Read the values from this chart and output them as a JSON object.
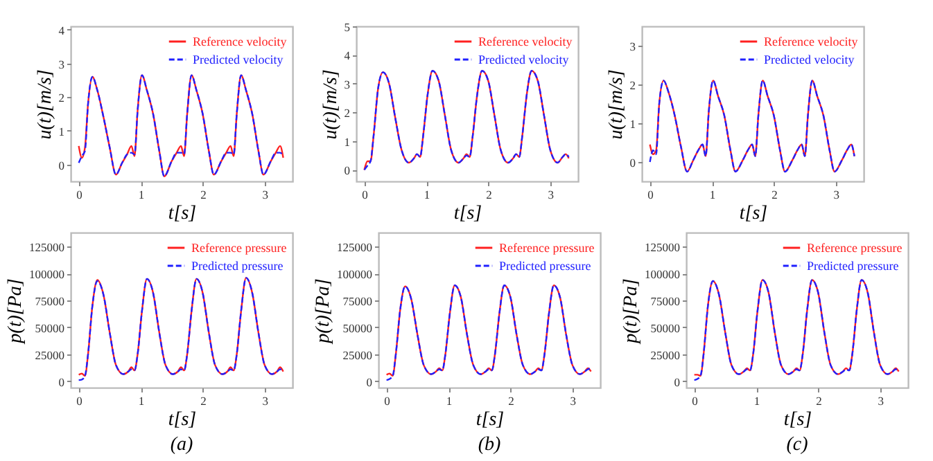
{
  "chart_data": [
    {
      "type": "line",
      "xlabel": "t[s]",
      "ylabel": "u(t)[m/s]",
      "legend": "top right",
      "xlim": [
        -0.13,
        3.45
      ],
      "ylim": [
        -0.5,
        4.1
      ],
      "xticks": [
        0,
        1,
        2,
        3
      ],
      "yticks": [
        0,
        1,
        2,
        3,
        4
      ],
      "x": [
        0,
        0.05,
        0.1,
        0.15,
        0.22,
        0.3,
        0.4,
        0.5,
        0.6,
        0.7,
        0.78,
        0.85,
        0.9,
        0.95,
        1.02,
        1.1,
        1.2,
        1.3,
        1.38,
        1.5,
        1.58,
        1.65,
        1.7,
        1.75,
        1.82,
        1.9,
        2.0,
        2.1,
        2.18,
        2.3,
        2.38,
        2.45,
        2.5,
        2.55,
        2.62,
        2.7,
        2.8,
        2.9,
        2.98,
        3.1,
        3.18,
        3.25,
        3.3
      ],
      "series": [
        {
          "name": "Reference velocity",
          "color": "#ff2020",
          "line_style": "solid",
          "values": [
            0.55,
            0.2,
            0.5,
            1.8,
            2.6,
            2.2,
            1.4,
            0.5,
            -0.3,
            0.05,
            0.3,
            0.55,
            0.25,
            1.6,
            2.65,
            2.2,
            1.5,
            0.4,
            -0.35,
            0.1,
            0.35,
            0.55,
            0.25,
            1.5,
            2.65,
            2.2,
            1.5,
            0.4,
            -0.3,
            0.1,
            0.35,
            0.55,
            0.25,
            1.5,
            2.65,
            2.2,
            1.5,
            0.4,
            -0.3,
            0.1,
            0.35,
            0.55,
            0.2
          ]
        },
        {
          "name": "Predicted velocity",
          "color": "#2020ff",
          "line_style": "dashed",
          "values": [
            0.05,
            0.25,
            0.4,
            1.8,
            2.6,
            2.2,
            1.4,
            0.5,
            -0.3,
            0.05,
            0.3,
            0.35,
            0.3,
            1.6,
            2.65,
            2.2,
            1.5,
            0.4,
            -0.35,
            0.1,
            0.35,
            0.35,
            0.3,
            1.5,
            2.65,
            2.2,
            1.5,
            0.4,
            -0.3,
            0.1,
            0.35,
            0.35,
            0.3,
            1.5,
            2.65,
            2.2,
            1.5,
            0.4,
            -0.3,
            0.1,
            0.35,
            0.35,
            0.25
          ]
        }
      ]
    },
    {
      "type": "line",
      "xlabel": "t[s]",
      "ylabel": "u(t)[m/s]",
      "legend": "top right",
      "xlim": [
        -0.13,
        3.45
      ],
      "ylim": [
        -0.4,
        5
      ],
      "xticks": [
        0,
        1,
        2,
        3
      ],
      "yticks": [
        0,
        1,
        2,
        3,
        4,
        5
      ],
      "x": [
        0,
        0.05,
        0.1,
        0.15,
        0.22,
        0.3,
        0.4,
        0.5,
        0.6,
        0.72,
        0.8,
        0.85,
        0.9,
        0.95,
        1.02,
        1.1,
        1.2,
        1.3,
        1.4,
        1.52,
        1.6,
        1.65,
        1.7,
        1.75,
        1.82,
        1.9,
        2.0,
        2.1,
        2.2,
        2.32,
        2.4,
        2.45,
        2.5,
        2.55,
        2.62,
        2.7,
        2.8,
        2.9,
        3.0,
        3.12,
        3.2,
        3.25,
        3.3
      ],
      "series": [
        {
          "name": "Reference velocity",
          "color": "#ff2020",
          "line_style": "solid",
          "values": [
            0,
            0.3,
            0.3,
            1.2,
            2.8,
            3.4,
            3.0,
            1.8,
            0.7,
            0.25,
            0.4,
            0.55,
            0.45,
            1.2,
            2.6,
            3.45,
            3.1,
            1.9,
            0.7,
            0.25,
            0.4,
            0.55,
            0.45,
            1.2,
            2.6,
            3.45,
            3.1,
            1.9,
            0.7,
            0.25,
            0.4,
            0.55,
            0.45,
            1.2,
            2.6,
            3.45,
            3.1,
            1.9,
            0.7,
            0.25,
            0.45,
            0.55,
            0.4
          ]
        },
        {
          "name": "Predicted velocity",
          "color": "#2020ff",
          "line_style": "dashed",
          "values": [
            0,
            0.15,
            0.3,
            1.2,
            2.8,
            3.4,
            3.0,
            1.8,
            0.7,
            0.25,
            0.4,
            0.55,
            0.45,
            1.2,
            2.6,
            3.45,
            3.1,
            1.9,
            0.7,
            0.25,
            0.4,
            0.5,
            0.45,
            1.2,
            2.6,
            3.45,
            3.1,
            1.9,
            0.7,
            0.25,
            0.4,
            0.55,
            0.45,
            1.2,
            2.6,
            3.45,
            3.1,
            1.9,
            0.7,
            0.25,
            0.45,
            0.55,
            0.45
          ]
        }
      ]
    },
    {
      "type": "line",
      "xlabel": "t[s]",
      "ylabel": "u(t)[m/s]",
      "legend": "top right",
      "xlim": [
        -0.13,
        3.45
      ],
      "ylim": [
        -0.5,
        3.5
      ],
      "xticks": [
        0,
        1,
        2,
        3
      ],
      "yticks": [
        0,
        1,
        2,
        3
      ],
      "x": [
        0,
        0.05,
        0.1,
        0.15,
        0.22,
        0.3,
        0.4,
        0.5,
        0.6,
        0.7,
        0.78,
        0.85,
        0.9,
        0.95,
        1.02,
        1.1,
        1.2,
        1.3,
        1.38,
        1.5,
        1.58,
        1.65,
        1.7,
        1.75,
        1.82,
        1.9,
        2.0,
        2.1,
        2.18,
        2.3,
        2.38,
        2.45,
        2.5,
        2.55,
        2.62,
        2.7,
        2.8,
        2.9,
        2.98,
        3.1,
        3.18,
        3.25,
        3.3
      ],
      "series": [
        {
          "name": "Reference velocity",
          "color": "#ff2020",
          "line_style": "solid",
          "values": [
            0.45,
            0.2,
            0.3,
            1.5,
            2.1,
            1.8,
            1.2,
            0.4,
            -0.25,
            0.05,
            0.3,
            0.45,
            0.15,
            1.3,
            2.1,
            1.7,
            1.2,
            0.3,
            -0.25,
            0.05,
            0.3,
            0.45,
            0.15,
            1.2,
            2.1,
            1.7,
            1.2,
            0.3,
            -0.25,
            0.05,
            0.3,
            0.45,
            0.15,
            1.2,
            2.1,
            1.7,
            1.2,
            0.3,
            -0.25,
            0.05,
            0.3,
            0.45,
            0.15
          ]
        },
        {
          "name": "Predicted velocity",
          "color": "#2020ff",
          "line_style": "dashed",
          "values": [
            0,
            0.3,
            0.2,
            1.5,
            2.1,
            1.8,
            1.2,
            0.4,
            -0.25,
            0.05,
            0.3,
            0.45,
            0.15,
            1.3,
            2.1,
            1.7,
            1.2,
            0.3,
            -0.25,
            0.05,
            0.3,
            0.45,
            0.15,
            1.2,
            2.1,
            1.7,
            1.2,
            0.3,
            -0.25,
            0.05,
            0.3,
            0.45,
            0.15,
            1.2,
            2.1,
            1.7,
            1.2,
            0.3,
            -0.25,
            0.05,
            0.3,
            0.45,
            0.15
          ]
        }
      ]
    },
    {
      "type": "line",
      "xlabel": "t[s]",
      "ylabel": "p(t)[Pa]",
      "legend": "top right",
      "annotations": [
        "(a)"
      ],
      "xlim": [
        -0.13,
        3.45
      ],
      "ylim": [
        -6000,
        138000
      ],
      "xticks": [
        0,
        1,
        2,
        3
      ],
      "yticks": [
        0,
        25000,
        50000,
        75000,
        100000,
        125000
      ],
      "x": [
        0,
        0.05,
        0.1,
        0.15,
        0.22,
        0.3,
        0.4,
        0.5,
        0.6,
        0.72,
        0.8,
        0.85,
        0.9,
        0.95,
        1.02,
        1.1,
        1.2,
        1.3,
        1.4,
        1.52,
        1.6,
        1.65,
        1.7,
        1.75,
        1.82,
        1.9,
        2.0,
        2.1,
        2.2,
        2.32,
        2.4,
        2.45,
        2.5,
        2.55,
        2.62,
        2.7,
        2.8,
        2.9,
        3.0,
        3.12,
        3.2,
        3.25,
        3.3
      ],
      "series": [
        {
          "name": "Reference pressure",
          "color": "#ff2020",
          "line_style": "solid",
          "values": [
            6000,
            7000,
            5000,
            25000,
            70000,
            94000,
            80000,
            45000,
            15000,
            6500,
            9000,
            13000,
            10000,
            25000,
            65000,
            95000,
            82000,
            45000,
            15000,
            6500,
            9000,
            13000,
            10000,
            25000,
            65000,
            95000,
            82000,
            45000,
            15000,
            6500,
            9000,
            13000,
            10000,
            25000,
            65000,
            96000,
            82000,
            45000,
            15000,
            6500,
            9000,
            13000,
            9000
          ]
        },
        {
          "name": "Predicted pressure",
          "color": "#2020ff",
          "line_style": "dashed",
          "values": [
            1000,
            1500,
            5000,
            25000,
            70000,
            93000,
            80000,
            45000,
            15000,
            6500,
            9000,
            11000,
            10000,
            25000,
            65000,
            95000,
            82000,
            45000,
            15000,
            6500,
            9000,
            11000,
            10000,
            25000,
            65000,
            95000,
            82000,
            45000,
            15000,
            6500,
            9000,
            11000,
            10000,
            25000,
            65000,
            96000,
            82000,
            45000,
            15000,
            6500,
            9000,
            11000,
            11000
          ]
        }
      ]
    },
    {
      "type": "line",
      "xlabel": "t[s]",
      "ylabel": "p(t)[Pa]",
      "legend": "top right",
      "annotations": [
        "(b)"
      ],
      "xlim": [
        -0.13,
        3.45
      ],
      "ylim": [
        -6000,
        138000
      ],
      "xticks": [
        0,
        1,
        2,
        3
      ],
      "yticks": [
        0,
        25000,
        50000,
        75000,
        100000,
        125000
      ],
      "x": [
        0,
        0.05,
        0.1,
        0.15,
        0.22,
        0.3,
        0.4,
        0.5,
        0.6,
        0.72,
        0.8,
        0.85,
        0.9,
        0.95,
        1.02,
        1.1,
        1.2,
        1.3,
        1.4,
        1.52,
        1.6,
        1.65,
        1.7,
        1.75,
        1.82,
        1.9,
        2.0,
        2.1,
        2.2,
        2.32,
        2.4,
        2.45,
        2.5,
        2.55,
        2.62,
        2.7,
        2.8,
        2.9,
        3.0,
        3.12,
        3.2,
        3.25,
        3.3
      ],
      "series": [
        {
          "name": "Reference pressure",
          "color": "#ff2020",
          "line_style": "solid",
          "values": [
            6000,
            7000,
            5000,
            25000,
            66000,
            88000,
            76000,
            43000,
            15000,
            6500,
            9000,
            12000,
            10000,
            25000,
            62000,
            89000,
            78000,
            43000,
            15000,
            6500,
            9000,
            12000,
            10000,
            25000,
            62000,
            89000,
            78000,
            43000,
            15000,
            6500,
            9000,
            12000,
            10000,
            25000,
            62000,
            89000,
            78000,
            43000,
            15000,
            6500,
            9000,
            12000,
            9000
          ]
        },
        {
          "name": "Predicted pressure",
          "color": "#2020ff",
          "line_style": "dashed",
          "values": [
            1000,
            2000,
            5000,
            25000,
            66000,
            88000,
            76000,
            43000,
            15000,
            6500,
            9000,
            11000,
            10000,
            25000,
            62000,
            89000,
            78000,
            43000,
            15000,
            6500,
            9000,
            11000,
            10000,
            25000,
            62000,
            89000,
            78000,
            43000,
            15000,
            6500,
            9000,
            11000,
            10000,
            25000,
            62000,
            89000,
            78000,
            43000,
            15000,
            6500,
            9000,
            11000,
            12000
          ]
        }
      ]
    },
    {
      "type": "line",
      "xlabel": "t[s]",
      "ylabel": "p(t)[Pa]",
      "legend": "top right",
      "annotations": [
        "(c)"
      ],
      "xlim": [
        -0.13,
        3.45
      ],
      "ylim": [
        -6000,
        138000
      ],
      "xticks": [
        0,
        1,
        2,
        3
      ],
      "yticks": [
        0,
        25000,
        50000,
        75000,
        100000,
        125000
      ],
      "x": [
        0,
        0.05,
        0.1,
        0.15,
        0.22,
        0.3,
        0.4,
        0.5,
        0.6,
        0.72,
        0.8,
        0.85,
        0.9,
        0.95,
        1.02,
        1.1,
        1.2,
        1.3,
        1.4,
        1.52,
        1.6,
        1.65,
        1.7,
        1.75,
        1.82,
        1.9,
        2.0,
        2.1,
        2.2,
        2.32,
        2.4,
        2.45,
        2.5,
        2.55,
        2.62,
        2.7,
        2.8,
        2.9,
        3.0,
        3.12,
        3.2,
        3.25,
        3.3
      ],
      "series": [
        {
          "name": "Reference pressure",
          "color": "#ff2020",
          "line_style": "solid",
          "values": [
            6000,
            6000,
            5000,
            25000,
            70000,
            93000,
            80000,
            45000,
            15000,
            6500,
            9000,
            12000,
            10000,
            25000,
            65000,
            94000,
            82000,
            45000,
            15000,
            6500,
            9000,
            12000,
            10000,
            25000,
            65000,
            94000,
            82000,
            45000,
            15000,
            6500,
            9000,
            12000,
            10000,
            25000,
            65000,
            94000,
            82000,
            45000,
            15000,
            6500,
            9000,
            12000,
            9000
          ]
        },
        {
          "name": "Predicted pressure",
          "color": "#2020ff",
          "line_style": "dashed",
          "values": [
            1000,
            2000,
            5000,
            25000,
            70000,
            93000,
            80000,
            45000,
            15000,
            6500,
            9000,
            11000,
            10000,
            25000,
            65000,
            94000,
            82000,
            45000,
            15000,
            6500,
            9000,
            11000,
            10000,
            25000,
            65000,
            94000,
            82000,
            45000,
            15000,
            6500,
            9000,
            11000,
            10000,
            25000,
            65000,
            94000,
            82000,
            45000,
            15000,
            6500,
            9000,
            11000,
            11000
          ]
        }
      ]
    }
  ]
}
